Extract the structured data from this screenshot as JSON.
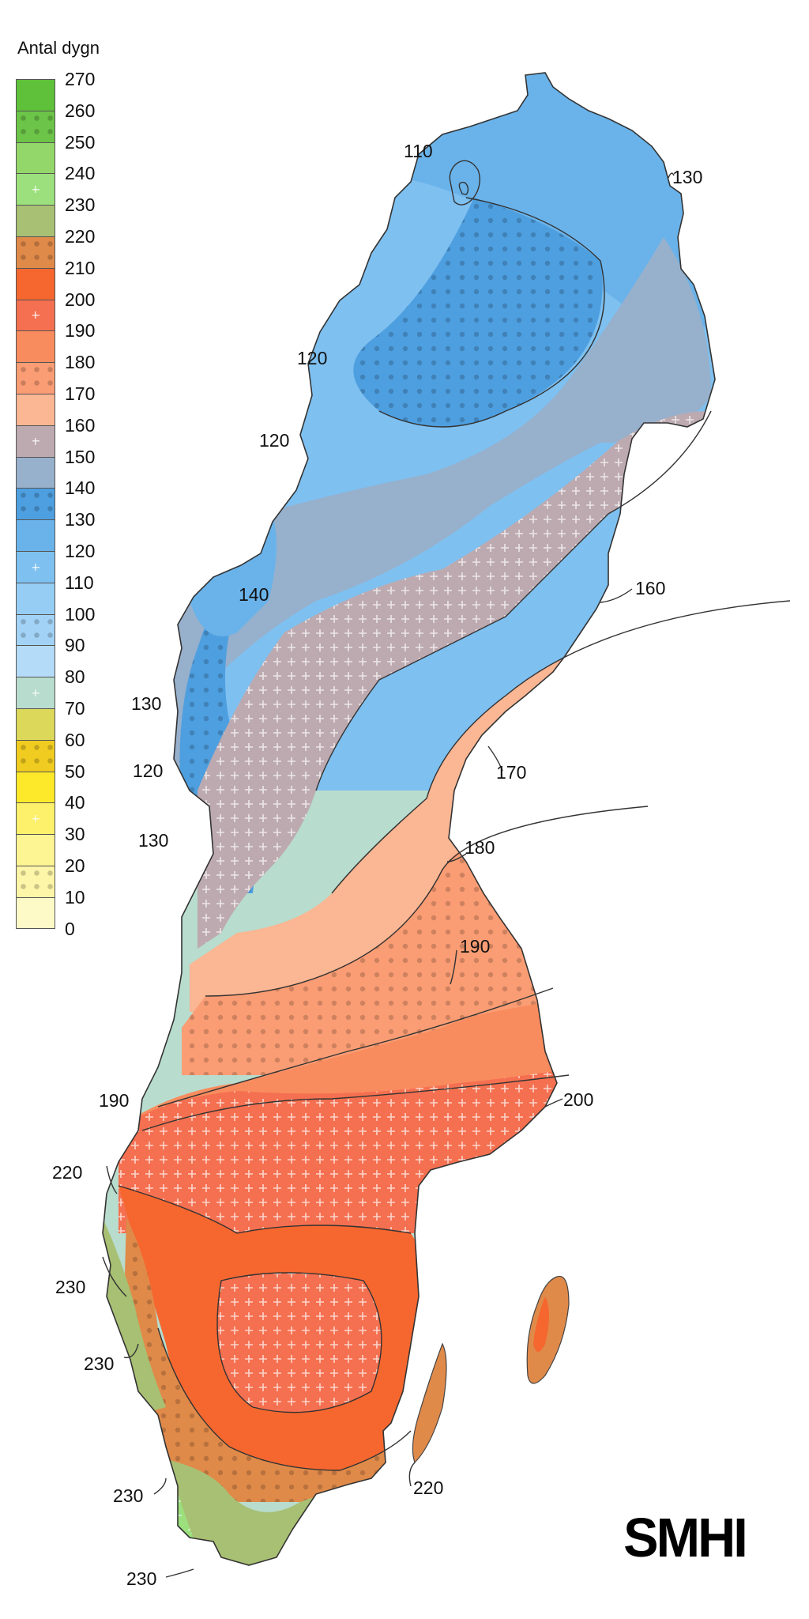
{
  "legend": {
    "title": "Antal dygn",
    "ticks": [
      "270",
      "260",
      "250",
      "240",
      "230",
      "220",
      "210",
      "200",
      "190",
      "180",
      "170",
      "160",
      "150",
      "140",
      "130",
      "120",
      "110",
      "100",
      "90",
      "80",
      "70",
      "60",
      "50",
      "40",
      "30",
      "20",
      "10",
      "0"
    ],
    "classes": [
      {
        "color": "#5fc13a",
        "pattern": "none"
      },
      {
        "color": "#6cc448",
        "pattern": "dots"
      },
      {
        "color": "#93d66a",
        "pattern": "none"
      },
      {
        "color": "#9be07c",
        "pattern": "plus"
      },
      {
        "color": "#a8c073",
        "pattern": "none"
      },
      {
        "color": "#e08a4a",
        "pattern": "dots"
      },
      {
        "color": "#f5672f",
        "pattern": "none"
      },
      {
        "color": "#f57050",
        "pattern": "plus"
      },
      {
        "color": "#f98c5e",
        "pattern": "none"
      },
      {
        "color": "#fb9d74",
        "pattern": "dots"
      },
      {
        "color": "#fbb693",
        "pattern": "none"
      },
      {
        "color": "#bdaab0",
        "pattern": "plus"
      },
      {
        "color": "#97b0cc",
        "pattern": "none"
      },
      {
        "color": "#4e9fe0",
        "pattern": "dots"
      },
      {
        "color": "#6ab3ea",
        "pattern": "none"
      },
      {
        "color": "#7ec0f0",
        "pattern": "plus"
      },
      {
        "color": "#96cdf4",
        "pattern": "none"
      },
      {
        "color": "#a2d3f6",
        "pattern": "dots"
      },
      {
        "color": "#b4dbf8",
        "pattern": "none"
      },
      {
        "color": "#b8dccd",
        "pattern": "plus"
      },
      {
        "color": "#dcd95a",
        "pattern": "none"
      },
      {
        "color": "#f0cc20",
        "pattern": "dots"
      },
      {
        "color": "#fde92a",
        "pattern": "none"
      },
      {
        "color": "#fdf06a",
        "pattern": "plus"
      },
      {
        "color": "#fdf494",
        "pattern": "none"
      },
      {
        "color": "#fdf5a8",
        "pattern": "dots"
      },
      {
        "color": "#fefac8",
        "pattern": "none"
      }
    ]
  },
  "contour_labels": [
    "110",
    "130",
    "120",
    "120",
    "140",
    "160",
    "130",
    "120",
    "170",
    "130",
    "180",
    "190",
    "190",
    "200",
    "220",
    "230",
    "230",
    "220",
    "230",
    "230"
  ],
  "logo_text": "SMHI"
}
